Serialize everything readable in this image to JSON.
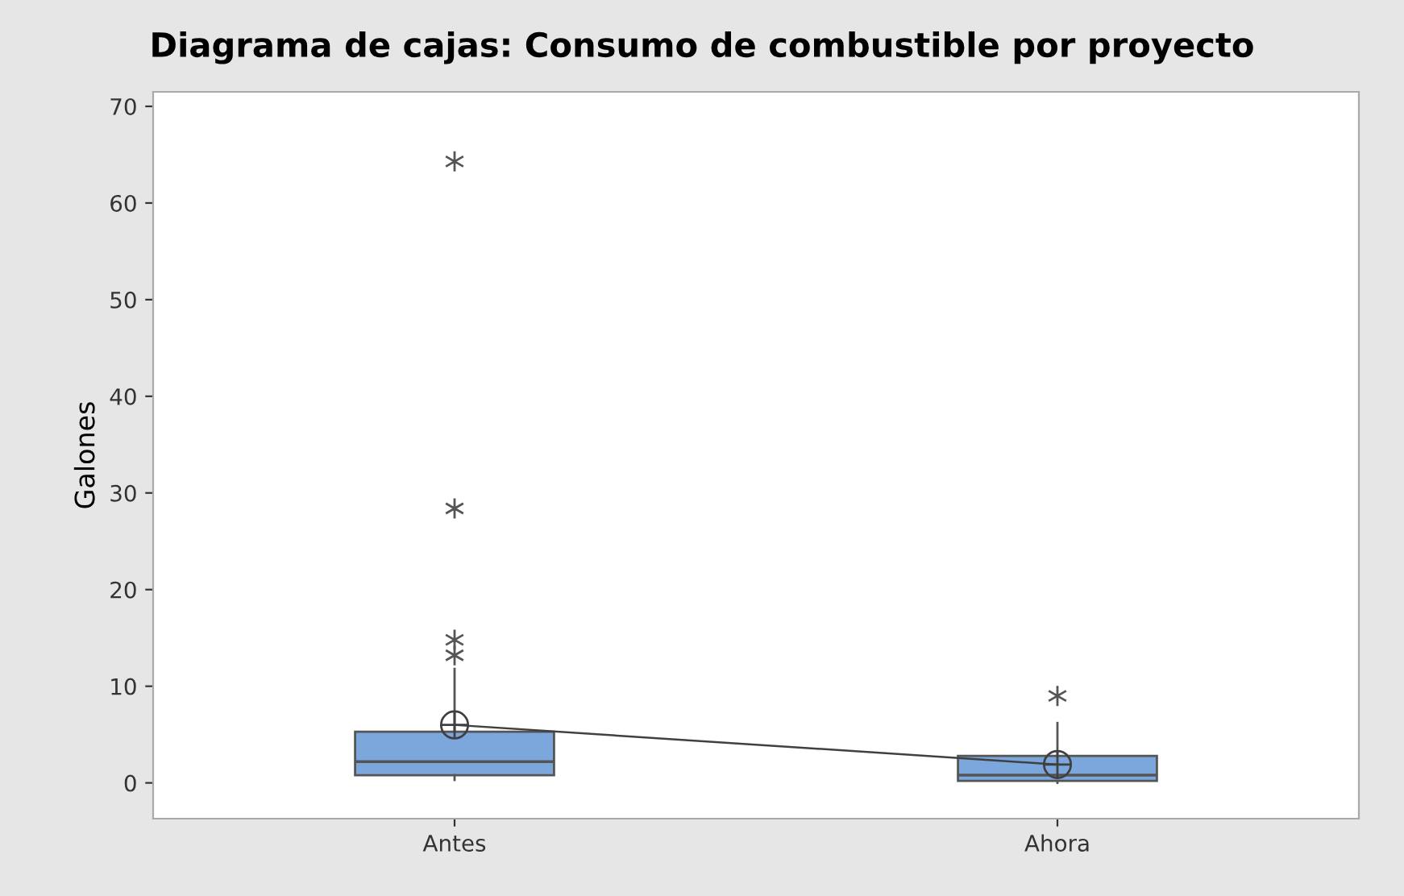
{
  "chart_data": {
    "type": "box",
    "title": "Diagrama de cajas: Consumo de combustible por proyecto",
    "ylabel": "Galones",
    "categories": [
      "Antes",
      "Ahora"
    ],
    "series": [
      {
        "color": "#7ba7dc",
        "boxes": [
          {
            "low": 0.3,
            "q1": 0.8,
            "median": 2.2,
            "q3": 5.3,
            "high": 11.8,
            "outliers": [
              64.3,
              28.4,
              14.8,
              13.2
            ]
          },
          {
            "low": 0.0,
            "q1": 0.2,
            "median": 0.8,
            "q3": 2.8,
            "high": 6.2,
            "outliers": [
              9.0
            ]
          }
        ]
      },
      {
        "type": "line",
        "color": "#404040",
        "values": [
          6.0,
          1.9
        ],
        "marker": "circle"
      }
    ],
    "ylim": [
      -3.7,
      71.5
    ],
    "yticks": [
      0,
      10,
      20,
      30,
      40,
      50,
      60,
      70
    ],
    "grid": false,
    "legend": false
  }
}
